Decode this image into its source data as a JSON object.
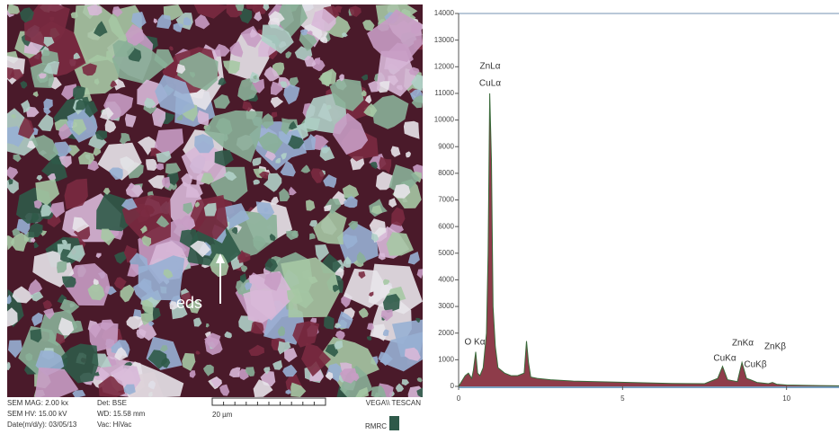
{
  "sem_image": {
    "label": "eds",
    "info": [
      "SEM MAG: 2.00 kx",
      "Det: BSE",
      "SEM HV: 15.00 kV",
      "WD: 15.58 mm",
      "Date(m/d/y): 03/05/13",
      "Vac: HiVac"
    ],
    "scale_bar": "20 µm",
    "brand": "VEGA\\\\ TESCAN",
    "lab": "RMRC"
  },
  "chart_data": {
    "type": "area",
    "x": [
      0,
      0.1,
      0.2,
      0.3,
      0.4,
      0.45,
      0.52,
      0.58,
      0.65,
      0.75,
      0.85,
      0.9,
      0.95,
      1.0,
      1.05,
      1.12,
      1.2,
      1.4,
      1.6,
      1.8,
      2.0,
      2.07,
      2.13,
      2.2,
      2.4,
      2.8,
      3.5,
      4.5,
      5.5,
      6.5,
      7.5,
      7.9,
      8.05,
      8.2,
      8.5,
      8.64,
      8.78,
      8.9,
      9.1,
      9.45,
      9.57,
      9.7,
      10,
      11,
      11.6
    ],
    "values": [
      0,
      200,
      400,
      500,
      300,
      600,
      1300,
      500,
      400,
      700,
      2000,
      5000,
      11000,
      8500,
      3000,
      1500,
      700,
      500,
      400,
      400,
      500,
      1700,
      900,
      350,
      300,
      250,
      200,
      170,
      140,
      110,
      100,
      300,
      750,
      250,
      180,
      900,
      300,
      250,
      150,
      100,
      150,
      80,
      50,
      30,
      20
    ],
    "annotations": [
      "ZnLα",
      "CuLα",
      "O Kα",
      "CuKα",
      "ZnKα",
      "CuKβ",
      "ZnKβ"
    ],
    "color": "#7a1a2a",
    "xlim": [
      0,
      11.6
    ],
    "ylim": [
      0,
      14000
    ],
    "xticks": [
      0,
      5,
      10
    ],
    "yticks": [
      0,
      1000,
      2000,
      3000,
      4000,
      5000,
      6000,
      7000,
      8000,
      9000,
      10000,
      11000,
      12000,
      13000,
      14000
    ]
  }
}
